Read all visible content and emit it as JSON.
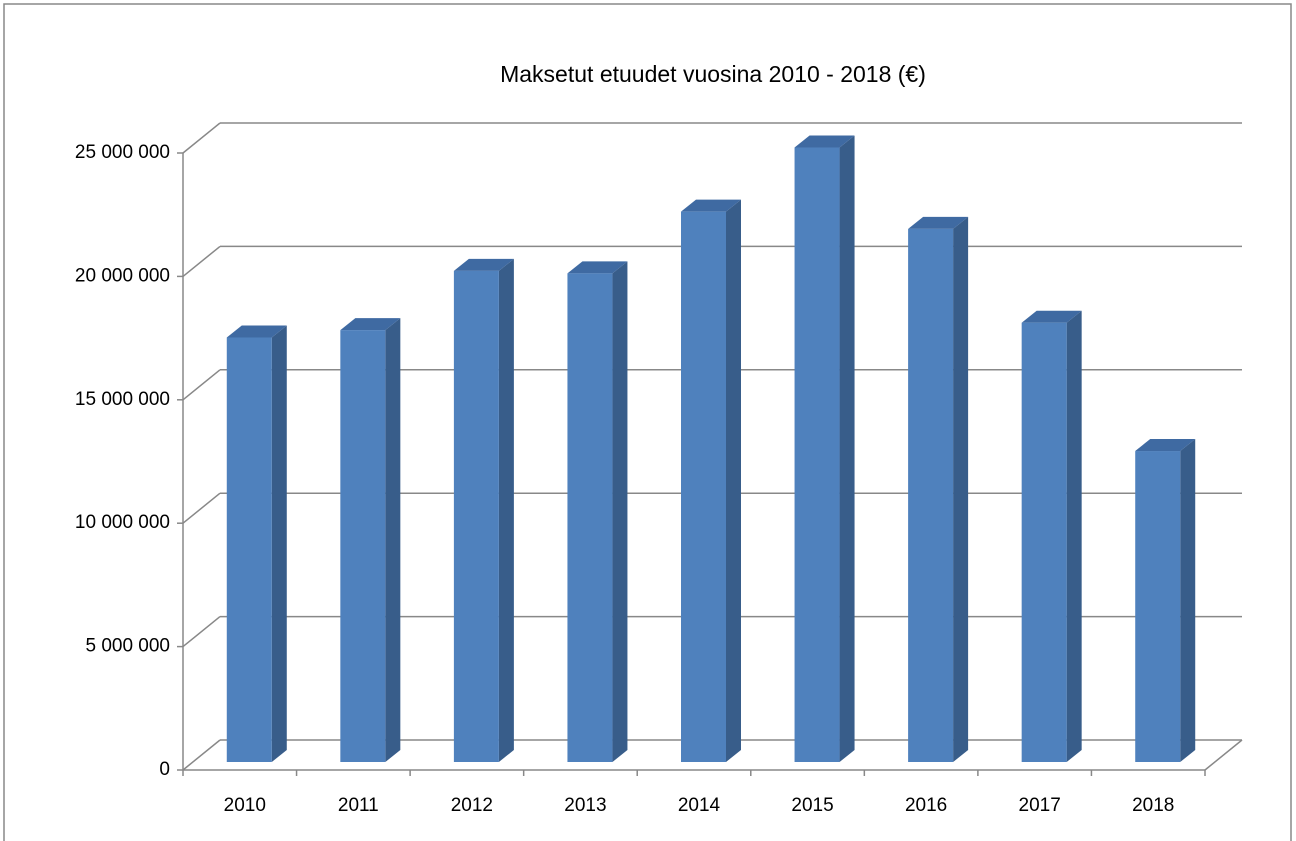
{
  "chart_data": {
    "type": "bar3d",
    "title": "Maksetut etuudet vuosina 2010 - 2018 (€)",
    "categories": [
      "2010",
      "2011",
      "2012",
      "2013",
      "2014",
      "2015",
      "2016",
      "2017",
      "2018"
    ],
    "values": [
      17200000,
      17500000,
      19900000,
      19800000,
      22300000,
      24900000,
      21600000,
      17800000,
      12600000
    ],
    "color": "#4f81bd",
    "ylim": [
      0,
      25000000
    ],
    "yticks": [
      0,
      {
        "value": 5000000,
        "label": "5 000 000"
      },
      {
        "value": 10000000,
        "label": "10 000 000"
      },
      {
        "value": 15000000,
        "label": "15 000 000"
      },
      {
        "value": 20000000,
        "label": "20 000 000"
      },
      {
        "value": 25000000,
        "label": "25 000 000"
      }
    ],
    "grid": true
  }
}
